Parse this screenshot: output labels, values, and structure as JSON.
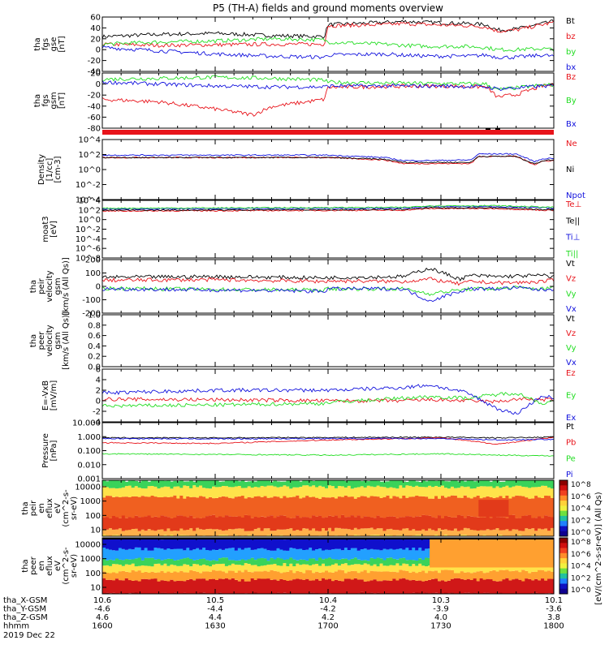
{
  "title": "P5 (TH-A) fields and ground moments overview",
  "colors": {
    "black": "#000000",
    "red": "#e8141b",
    "green": "#22dd22",
    "blue": "#1111dd"
  },
  "chart_data": [
    {
      "type": "line",
      "id": "fgs_gse",
      "ylabel": [
        "tha",
        "fgs",
        "gse",
        "[nT]"
      ],
      "ylim": [
        -40,
        60
      ],
      "yticks": [
        "60",
        "40",
        "20",
        "0",
        "-20",
        "-40"
      ],
      "series": [
        {
          "name": "Bt",
          "color": "#000000",
          "x": [
            1600,
            1615,
            1630,
            1645,
            1659,
            1700,
            1715,
            1720,
            1727,
            1737,
            1742,
            1745,
            1750,
            1757,
            1800
          ],
          "y": [
            24,
            28,
            30,
            26,
            24,
            46,
            50,
            52,
            50,
            48,
            46,
            36,
            38,
            48,
            52
          ]
        },
        {
          "name": "bz",
          "color": "#e8141b",
          "x": [
            1600,
            1615,
            1630,
            1645,
            1659,
            1700,
            1715,
            1720,
            1727,
            1737,
            1742,
            1745,
            1750,
            1757,
            1800
          ],
          "y": [
            10,
            8,
            9,
            10,
            10,
            44,
            46,
            48,
            46,
            44,
            42,
            34,
            36,
            46,
            50
          ]
        },
        {
          "name": "by",
          "color": "#22dd22",
          "x": [
            1600,
            1615,
            1630,
            1645,
            1659,
            1700,
            1715,
            1720,
            1727,
            1737,
            1742,
            1745,
            1750,
            1757,
            1800
          ],
          "y": [
            10,
            14,
            16,
            20,
            18,
            14,
            10,
            8,
            6,
            6,
            4,
            0,
            0,
            2,
            0
          ]
        },
        {
          "name": "bx",
          "color": "#1111dd",
          "x": [
            1600,
            1615,
            1630,
            1645,
            1659,
            1700,
            1715,
            1720,
            1727,
            1737,
            1742,
            1745,
            1750,
            1757,
            1800
          ],
          "y": [
            4,
            -2,
            -8,
            -12,
            -14,
            -10,
            -8,
            -10,
            -12,
            -12,
            -10,
            -14,
            -14,
            -10,
            -12
          ]
        }
      ]
    },
    {
      "type": "line",
      "id": "fgs_gsm",
      "ylabel": [
        "tha",
        "fgs",
        "gsm",
        "[nT]"
      ],
      "ylim": [
        -90,
        25
      ],
      "yticks": [
        "20",
        "0",
        "-20",
        "-40",
        "-60",
        "-80"
      ],
      "series": [
        {
          "name": "Bz",
          "color": "#e8141b",
          "x": [
            1600,
            1615,
            1630,
            1640,
            1645,
            1659,
            1700,
            1715,
            1730,
            1742,
            1745,
            1750,
            1757,
            1800
          ],
          "y": [
            -30,
            -35,
            -50,
            -62,
            -45,
            -30,
            -5,
            -3,
            -2,
            -4,
            -25,
            -20,
            -2,
            0
          ]
        },
        {
          "name": "By",
          "color": "#22dd22",
          "x": [
            1600,
            1615,
            1630,
            1645,
            1659,
            1700,
            1715,
            1730,
            1742,
            1745,
            1750,
            1757,
            1800
          ],
          "y": [
            12,
            14,
            16,
            14,
            10,
            6,
            4,
            3,
            2,
            -10,
            -6,
            0,
            0
          ]
        },
        {
          "name": "Bx",
          "color": "#1111dd",
          "x": [
            1600,
            1615,
            1630,
            1645,
            1659,
            1700,
            1715,
            1730,
            1742,
            1745,
            1750,
            1757,
            1800
          ],
          "y": [
            6,
            2,
            -2,
            -4,
            -4,
            -2,
            -2,
            -2,
            -4,
            -8,
            -6,
            -2,
            -2
          ]
        }
      ]
    },
    {
      "type": "line",
      "id": "density",
      "yscale": "log",
      "ylabel": [
        "Density",
        "[1/cc]",
        "[cm-3]"
      ],
      "ylim": [
        -5,
        5
      ],
      "yticks": [
        "10^4",
        "10^2",
        "10^0",
        "10^-2",
        "10^-4"
      ],
      "series": [
        {
          "name": "Ne",
          "color": "#e8141b",
          "x": [
            1600,
            1700,
            1715,
            1720,
            1727,
            1738,
            1740,
            1750,
            1755,
            1757,
            1800
          ],
          "y": [
            2.0,
            2.0,
            1.6,
            1.0,
            1.0,
            1.0,
            2.2,
            2.2,
            0.8,
            1.4,
            1.5
          ]
        },
        {
          "name": "Ni",
          "color": "#000000",
          "x": [
            1600,
            1700,
            1715,
            1720,
            1727,
            1738,
            1740,
            1750,
            1755,
            1757,
            1800
          ],
          "y": [
            2.0,
            2.0,
            1.7,
            1.2,
            1.2,
            1.2,
            2.2,
            2.2,
            0.9,
            1.5,
            1.6
          ]
        },
        {
          "name": "Npot",
          "color": "#1111dd",
          "x": [
            1600,
            1700,
            1715,
            1720,
            1727,
            1738,
            1740,
            1750,
            1755,
            1757,
            1800
          ],
          "y": [
            2.4,
            2.4,
            2.0,
            1.5,
            1.5,
            1.6,
            2.6,
            2.6,
            1.3,
            1.8,
            1.9
          ]
        }
      ]
    },
    {
      "type": "line",
      "id": "temperature",
      "yscale": "log",
      "ylabel": [
        "moat3",
        "[eV]"
      ],
      "ylim": [
        -9,
        5
      ],
      "yticks": [
        "10^4",
        "10^2",
        "10^0",
        "10^-2",
        "10^-4",
        "10^-6",
        "10^-8"
      ],
      "series": [
        {
          "name": "Te⊥",
          "color": "#e8141b",
          "x": [
            1600,
            1720,
            1727,
            1745,
            1757,
            1800
          ],
          "y": [
            2.4,
            2.6,
            3.0,
            3.0,
            2.6,
            2.6
          ]
        },
        {
          "name": "Te||",
          "color": "#000000",
          "x": [
            1600,
            1720,
            1727,
            1745,
            1757,
            1800
          ],
          "y": [
            2.6,
            2.8,
            3.2,
            3.2,
            2.8,
            2.8
          ]
        },
        {
          "name": "Ti⊥",
          "color": "#1111dd",
          "x": [
            1600,
            1720,
            1727,
            1745,
            1757,
            1800
          ],
          "y": [
            2.9,
            3.1,
            3.5,
            3.5,
            3.2,
            3.1
          ]
        },
        {
          "name": "Ti||",
          "color": "#22dd22",
          "x": [
            1600,
            1720,
            1727,
            1745,
            1757,
            1800
          ],
          "y": [
            3.1,
            3.3,
            3.7,
            3.7,
            3.4,
            3.3
          ]
        }
      ]
    },
    {
      "type": "line",
      "id": "peir_velocity",
      "ylabel": [
        "tha",
        "peir",
        "velocity",
        "gsm",
        "[km/s (All Qs)]"
      ],
      "ylim": [
        -220,
        220
      ],
      "yticks": [
        "200",
        "100",
        "0",
        "-100",
        "-200"
      ],
      "series": [
        {
          "name": "Vt",
          "color": "#000000",
          "x": [
            1600,
            1630,
            1659,
            1700,
            1720,
            1727,
            1735,
            1738,
            1745,
            1750,
            1757,
            1800
          ],
          "y": [
            75,
            80,
            70,
            72,
            80,
            150,
            60,
            90,
            80,
            85,
            90,
            80
          ]
        },
        {
          "name": "Vz",
          "color": "#e8141b",
          "x": [
            1600,
            1630,
            1659,
            1700,
            1720,
            1727,
            1735,
            1738,
            1745,
            1750,
            1757,
            1800
          ],
          "y": [
            50,
            55,
            40,
            45,
            40,
            60,
            20,
            40,
            30,
            30,
            40,
            50
          ]
        },
        {
          "name": "Vy",
          "color": "#22dd22",
          "x": [
            1600,
            1630,
            1659,
            1700,
            1720,
            1727,
            1735,
            1738,
            1745,
            1750,
            1757,
            1800
          ],
          "y": [
            -15,
            -25,
            -30,
            -20,
            -20,
            -60,
            -30,
            -20,
            -20,
            -10,
            -20,
            -10
          ]
        },
        {
          "name": "Vx",
          "color": "#1111dd",
          "x": [
            1600,
            1630,
            1659,
            1700,
            1720,
            1727,
            1735,
            1738,
            1745,
            1750,
            1757,
            1800
          ],
          "y": [
            -20,
            -30,
            -40,
            -20,
            -20,
            -120,
            -40,
            -20,
            -20,
            -10,
            -30,
            -20
          ]
        }
      ]
    },
    {
      "type": "line",
      "id": "peer_velocity",
      "ylabel": [
        "tha",
        "peer",
        "velocity",
        "gsm",
        "[km/s (All Qs)]"
      ],
      "ylim": [
        0,
        1
      ],
      "yticks": [
        "1.0",
        "0.8",
        "0.6",
        "0.4",
        "0.2",
        "0.0"
      ],
      "series": [
        {
          "name": "Vt",
          "color": "#000000",
          "x": [],
          "y": []
        },
        {
          "name": "Vz",
          "color": "#e8141b",
          "x": [],
          "y": []
        },
        {
          "name": "Vy",
          "color": "#22dd22",
          "x": [],
          "y": []
        },
        {
          "name": "Vx",
          "color": "#1111dd",
          "x": [],
          "y": []
        }
      ]
    },
    {
      "type": "line",
      "id": "efield",
      "ylabel": [
        "E=-VxB",
        "[mV/m]"
      ],
      "ylim": [
        -4,
        6
      ],
      "yticks": [
        "6",
        "4",
        "2",
        "0",
        "-2",
        "-4"
      ],
      "series": [
        {
          "name": "Ez",
          "color": "#e8141b",
          "x": [
            1600,
            1630,
            1659,
            1700,
            1720,
            1727,
            1737,
            1745,
            1750,
            1757,
            1800
          ],
          "y": [
            0.3,
            0.2,
            0.0,
            0.0,
            0.0,
            0.2,
            0.0,
            -0.2,
            0.3,
            0.2,
            0.2
          ]
        },
        {
          "name": "Ey",
          "color": "#22dd22",
          "x": [
            1600,
            1630,
            1659,
            1700,
            1720,
            1727,
            1737,
            1745,
            1750,
            1757,
            1800
          ],
          "y": [
            -1.0,
            -0.8,
            -0.5,
            -0.3,
            0.5,
            0.8,
            0.5,
            1.2,
            1.5,
            -0.5,
            -0.2
          ]
        },
        {
          "name": "Ex",
          "color": "#1111dd",
          "x": [
            1600,
            1630,
            1659,
            1700,
            1720,
            1727,
            1737,
            1745,
            1750,
            1757,
            1800
          ],
          "y": [
            1.5,
            2.0,
            2.0,
            2.0,
            2.5,
            3.0,
            1.5,
            -1.5,
            -2.5,
            1.0,
            0.5
          ]
        }
      ]
    },
    {
      "type": "line",
      "id": "pressure",
      "yscale": "log",
      "ylabel": [
        "Pressure",
        "[nPa]"
      ],
      "ylim": [
        -3,
        1.05
      ],
      "yticks": [
        "10.000",
        "1.000",
        "0.100",
        "0.010",
        "0.001"
      ],
      "series": [
        {
          "name": "Pt",
          "color": "#000000",
          "x": [
            1600,
            1630,
            1700,
            1730,
            1745,
            1800
          ],
          "y": [
            -0.05,
            -0.05,
            -0.02,
            0.0,
            -0.05,
            0.0
          ]
        },
        {
          "name": "Pb",
          "color": "#e8141b",
          "x": [
            1600,
            1630,
            1700,
            1730,
            1745,
            1800
          ],
          "y": [
            -0.4,
            -0.45,
            -0.2,
            -0.05,
            -0.5,
            -0.02
          ]
        },
        {
          "name": "Pe",
          "color": "#22dd22",
          "x": [
            1600,
            1630,
            1700,
            1730,
            1745,
            1800
          ],
          "y": [
            -1.2,
            -1.25,
            -1.3,
            -1.2,
            -1.3,
            -1.35
          ]
        },
        {
          "name": "Pi",
          "color": "#1111dd",
          "x": [
            1600,
            1630,
            1700,
            1730,
            1745,
            1800
          ],
          "y": [
            -0.1,
            -0.12,
            -0.1,
            -0.1,
            -0.2,
            -0.15
          ]
        }
      ]
    },
    {
      "type": "heatmap",
      "id": "peir_spectrogram",
      "yscale": "log",
      "ylabel": [
        "tha",
        "peir",
        "en",
        "eflux",
        "eV",
        "(cm^2-s-",
        "sr-eV)"
      ],
      "ylim": [
        5,
        30000
      ],
      "yticks": [
        "10000",
        "1000",
        "100",
        "10"
      ]
    },
    {
      "type": "heatmap",
      "id": "peer_spectrogram",
      "yscale": "log",
      "ylabel": [
        "tha",
        "peer",
        "en",
        "eflux",
        "eV",
        "(cm^2-s-",
        "sr-eV)"
      ],
      "ylim": [
        5,
        30000
      ],
      "yticks": [
        "10000",
        "1000",
        "100",
        "10"
      ]
    }
  ],
  "colorbar": {
    "label": "[eV/(cm^2-s-sr-eV)] (All Qs)",
    "ticks": [
      "10^8",
      "10^6",
      "10^4",
      "10^2",
      "10^0"
    ],
    "ticks2": [
      "10^8",
      "10^6",
      "10^4",
      "10^2",
      "10^0"
    ]
  },
  "xaxis": {
    "rows": [
      {
        "label": "tha_X-GSM",
        "values": [
          "10.6",
          "10.5",
          "10.4",
          "10.3",
          "10.1"
        ]
      },
      {
        "label": "tha_Y-GSM",
        "values": [
          "-4.6",
          "-4.4",
          "-4.2",
          "-3.9",
          "-3.6"
        ]
      },
      {
        "label": "tha_Z-GSM",
        "values": [
          "4.6",
          "4.4",
          "4.2",
          "4.0",
          "3.8"
        ]
      },
      {
        "label": "hhmm",
        "values": [
          "1600",
          "1630",
          "1700",
          "1730",
          "1800"
        ]
      }
    ],
    "date": "2019 Dec 22"
  }
}
